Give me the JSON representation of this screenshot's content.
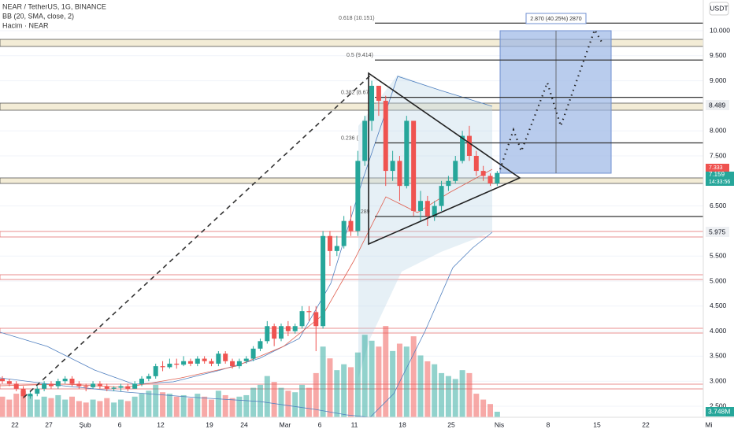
{
  "header": {
    "symbol": "NEAR / TetherUS, 1G, BINANCE",
    "bb": "BB (20, SMA, close, 2)",
    "volume": "Hacim · NEAR"
  },
  "currency": "USDT",
  "fib_labels": [
    "0.618 (10.151)",
    "0.5 (9.414)",
    "0.382 (8.67",
    "0.236 (",
    "6.289"
  ],
  "measure": "2.870 (40.25%) 2870",
  "badges": {
    "red": "7.333",
    "last": "7.159",
    "timer": "14:33:56",
    "b1": "8.489",
    "b2": "5.975",
    "vol": "3.748M"
  },
  "x_labels": [
    "22",
    "27",
    "Şub",
    "6",
    "12",
    "19",
    "24",
    "Mar",
    "6",
    "11",
    "18",
    "25",
    "Nis",
    "8",
    "15",
    "22",
    "Mi"
  ],
  "chart_data": {
    "type": "candlestick",
    "ylim": [
      2.3,
      10.6
    ],
    "yticks": [
      {
        "value": 10,
        "label": "10.000"
      },
      {
        "value": 9.5,
        "label": "9.500"
      },
      {
        "value": 9,
        "label": "9.000"
      },
      {
        "value": 8,
        "label": "8.000"
      },
      {
        "value": 7.5,
        "label": "7.500"
      },
      {
        "value": 6.5,
        "label": "6.500"
      },
      {
        "value": 5.5,
        "label": "5.500"
      },
      {
        "value": 5,
        "label": "5.000"
      },
      {
        "value": 4.5,
        "label": "4.500"
      },
      {
        "value": 4,
        "label": "4.000"
      },
      {
        "value": 3.5,
        "label": "3.500"
      },
      {
        "value": 3,
        "label": "3.000"
      },
      {
        "value": 2.5,
        "label": "2.500"
      }
    ],
    "fib_levels": [
      10.151,
      9.414,
      8.67,
      7.76,
      6.289
    ],
    "up_color": "#26a69a",
    "down_color": "#ef5350",
    "candles": [
      [
        3.05,
        3.1,
        2.95,
        3.0
      ],
      [
        3.0,
        3.05,
        2.9,
        2.95
      ],
      [
        2.95,
        3.0,
        2.8,
        2.85
      ],
      [
        2.85,
        2.9,
        2.65,
        2.7
      ],
      [
        2.7,
        2.8,
        2.65,
        2.75
      ],
      [
        2.75,
        2.9,
        2.7,
        2.85
      ],
      [
        2.85,
        3.0,
        2.8,
        2.95
      ],
      [
        2.95,
        3.0,
        2.85,
        2.9
      ],
      [
        2.9,
        3.05,
        2.85,
        3.0
      ],
      [
        3.0,
        3.1,
        2.95,
        3.05
      ],
      [
        3.05,
        3.1,
        2.9,
        2.95
      ],
      [
        2.95,
        3.0,
        2.85,
        2.9
      ],
      [
        2.9,
        2.95,
        2.8,
        2.88
      ],
      [
        2.88,
        3.0,
        2.85,
        2.95
      ],
      [
        2.95,
        3.0,
        2.85,
        2.9
      ],
      [
        2.9,
        2.95,
        2.8,
        2.85
      ],
      [
        2.85,
        2.9,
        2.8,
        2.87
      ],
      [
        2.87,
        2.95,
        2.8,
        2.9
      ],
      [
        2.9,
        2.95,
        2.8,
        2.85
      ],
      [
        2.85,
        3.0,
        2.85,
        2.95
      ],
      [
        2.95,
        3.1,
        2.9,
        3.05
      ],
      [
        3.05,
        3.15,
        3.0,
        3.1
      ],
      [
        3.1,
        3.35,
        3.05,
        3.3
      ],
      [
        3.3,
        3.4,
        3.2,
        3.28
      ],
      [
        3.28,
        3.45,
        3.25,
        3.35
      ],
      [
        3.35,
        3.45,
        3.25,
        3.33
      ],
      [
        3.33,
        3.5,
        3.3,
        3.4
      ],
      [
        3.4,
        3.45,
        3.3,
        3.35
      ],
      [
        3.35,
        3.5,
        3.3,
        3.45
      ],
      [
        3.45,
        3.5,
        3.35,
        3.4
      ],
      [
        3.4,
        3.45,
        3.3,
        3.35
      ],
      [
        3.35,
        3.6,
        3.3,
        3.55
      ],
      [
        3.55,
        3.6,
        3.35,
        3.4
      ],
      [
        3.4,
        3.45,
        3.25,
        3.3
      ],
      [
        3.3,
        3.45,
        3.25,
        3.4
      ],
      [
        3.4,
        3.5,
        3.35,
        3.45
      ],
      [
        3.45,
        3.7,
        3.4,
        3.65
      ],
      [
        3.65,
        3.85,
        3.6,
        3.8
      ],
      [
        3.8,
        4.2,
        3.75,
        4.1
      ],
      [
        4.1,
        4.15,
        3.7,
        3.85
      ],
      [
        3.85,
        4.15,
        3.8,
        4.1
      ],
      [
        4.1,
        4.2,
        3.9,
        4.0
      ],
      [
        4.0,
        4.15,
        3.95,
        4.1
      ],
      [
        4.1,
        4.5,
        4.05,
        4.4
      ],
      [
        4.4,
        4.5,
        4.2,
        4.38
      ],
      [
        4.38,
        4.5,
        3.6,
        4.1
      ],
      [
        4.1,
        6.0,
        4.05,
        5.9
      ],
      [
        5.9,
        6.0,
        5.3,
        5.6
      ],
      [
        5.6,
        5.9,
        5.5,
        5.7
      ],
      [
        5.7,
        6.3,
        5.65,
        6.2
      ],
      [
        6.2,
        6.5,
        5.9,
        6.0
      ],
      [
        6.0,
        7.6,
        5.9,
        7.4
      ],
      [
        7.4,
        8.3,
        7.3,
        8.2
      ],
      [
        8.2,
        9.0,
        8.0,
        8.9
      ],
      [
        8.9,
        8.9,
        8.3,
        8.6
      ],
      [
        8.6,
        8.7,
        6.9,
        7.2
      ],
      [
        7.2,
        7.6,
        7.0,
        7.4
      ],
      [
        7.4,
        7.5,
        6.6,
        6.9
      ],
      [
        6.9,
        8.3,
        6.85,
        8.2
      ],
      [
        8.2,
        8.2,
        6.3,
        6.4
      ],
      [
        6.4,
        6.8,
        6.2,
        6.6
      ],
      [
        6.6,
        6.7,
        6.1,
        6.3
      ],
      [
        6.3,
        6.6,
        6.2,
        6.5
      ],
      [
        6.5,
        7.0,
        6.4,
        6.9
      ],
      [
        6.9,
        7.1,
        6.8,
        7.0
      ],
      [
        7.0,
        7.5,
        6.95,
        7.4
      ],
      [
        7.4,
        8.0,
        7.35,
        7.9
      ],
      [
        7.9,
        8.1,
        7.4,
        7.5
      ],
      [
        7.5,
        7.6,
        7.1,
        7.2
      ],
      [
        7.2,
        7.3,
        7.0,
        7.1
      ],
      [
        7.1,
        7.15,
        6.9,
        6.95
      ],
      [
        6.95,
        7.2,
        6.9,
        7.159
      ]
    ],
    "volume": [
      14,
      12,
      16,
      18,
      15,
      12,
      14,
      13,
      15,
      12,
      14,
      11,
      10,
      12,
      11,
      13,
      10,
      12,
      11,
      14,
      16,
      18,
      22,
      17,
      16,
      14,
      15,
      13,
      16,
      14,
      12,
      18,
      15,
      13,
      14,
      15,
      20,
      22,
      28,
      24,
      20,
      18,
      17,
      22,
      20,
      30,
      48,
      40,
      32,
      36,
      34,
      44,
      56,
      52,
      48,
      62,
      45,
      50,
      48,
      55,
      42,
      38,
      36,
      30,
      28,
      26,
      32,
      30,
      16,
      12,
      9,
      3.748
    ]
  }
}
